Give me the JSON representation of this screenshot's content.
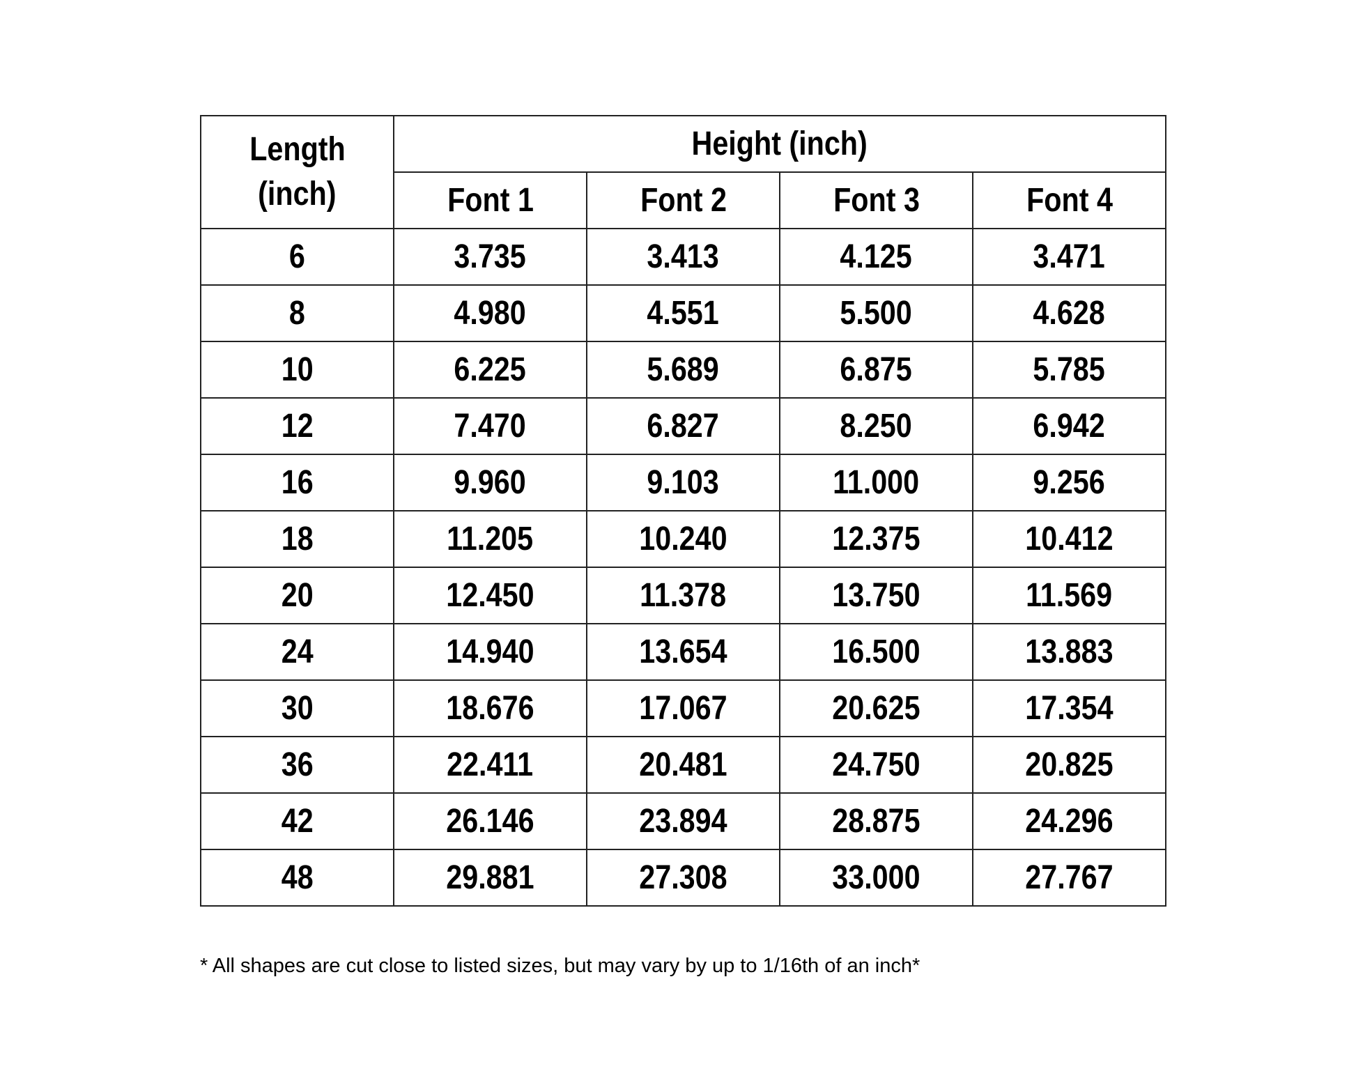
{
  "table": {
    "length_header": [
      "Length",
      "(inch)"
    ],
    "height_header": "Height (inch)",
    "font_headers": [
      "Font 1",
      "Font 2",
      "Font 3",
      "Font 4"
    ],
    "rows": [
      [
        "6",
        "3.735",
        "3.413",
        "4.125",
        "3.471"
      ],
      [
        "8",
        "4.980",
        "4.551",
        "5.500",
        "4.628"
      ],
      [
        "10",
        "6.225",
        "5.689",
        "6.875",
        "5.785"
      ],
      [
        "12",
        "7.470",
        "6.827",
        "8.250",
        "6.942"
      ],
      [
        "16",
        "9.960",
        "9.103",
        "11.000",
        "9.256"
      ],
      [
        "18",
        "11.205",
        "10.240",
        "12.375",
        "10.412"
      ],
      [
        "20",
        "12.450",
        "11.378",
        "13.750",
        "11.569"
      ],
      [
        "24",
        "14.940",
        "13.654",
        "16.500",
        "13.883"
      ],
      [
        "30",
        "18.676",
        "17.067",
        "20.625",
        "17.354"
      ],
      [
        "36",
        "22.411",
        "20.481",
        "24.750",
        "20.825"
      ],
      [
        "42",
        "26.146",
        "23.894",
        "28.875",
        "24.296"
      ],
      [
        "48",
        "29.881",
        "27.308",
        "33.000",
        "27.767"
      ]
    ]
  },
  "footnote": "* All shapes are cut close to listed sizes, but may vary by up to 1/16th of an inch*"
}
